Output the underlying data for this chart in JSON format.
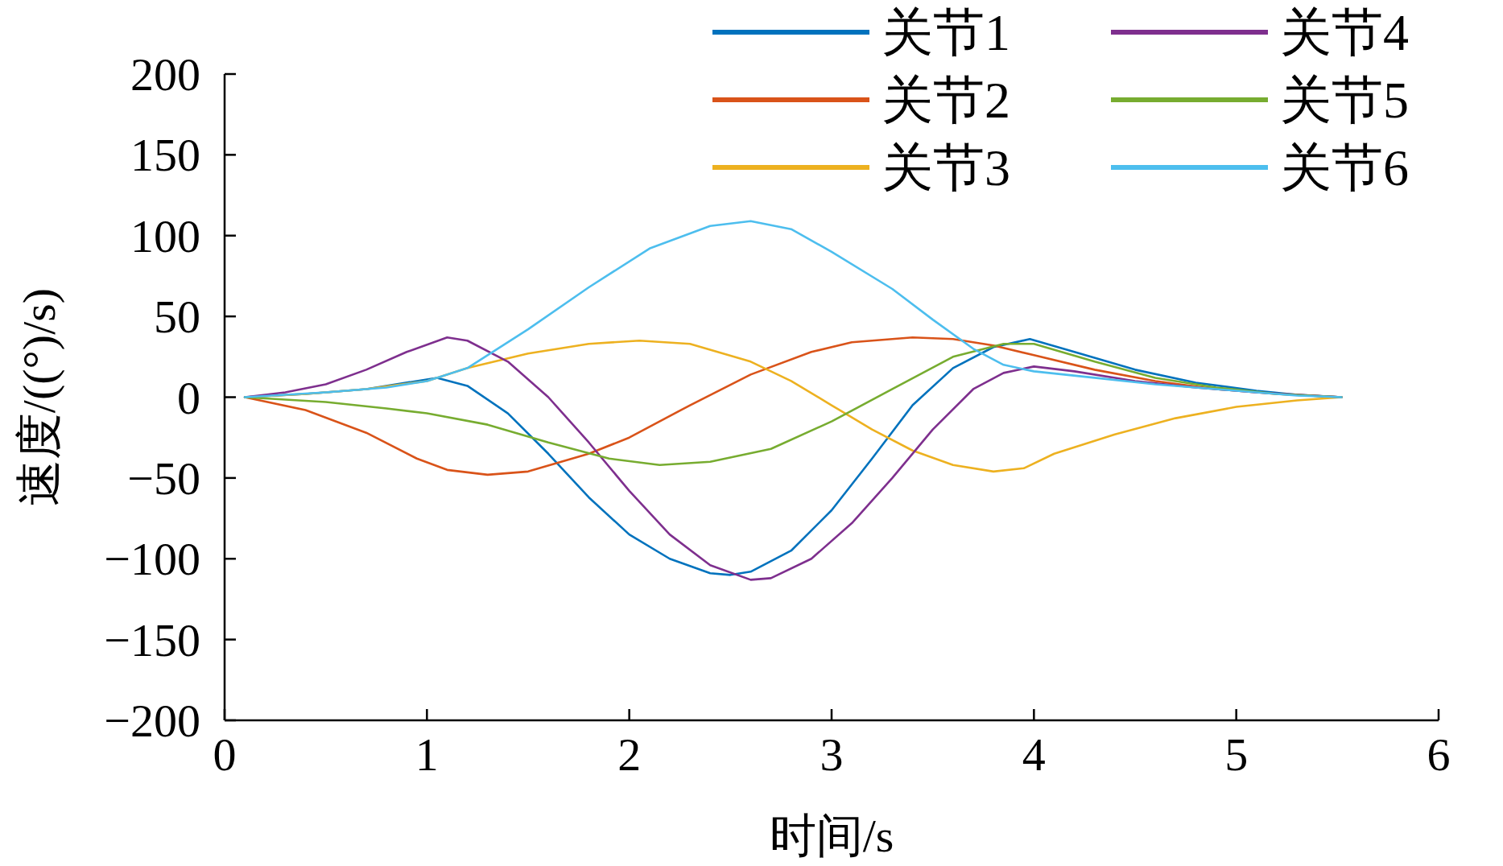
{
  "chart_data": {
    "type": "line",
    "xlabel": "时间/s",
    "ylabel": "速度/((°)/s)",
    "xlim": [
      0,
      6
    ],
    "ylim": [
      -200,
      200
    ],
    "xticks": [
      0,
      1,
      2,
      3,
      4,
      5,
      6
    ],
    "yticks": [
      -200,
      -150,
      -100,
      -50,
      0,
      50,
      100,
      150,
      200
    ],
    "grid": false,
    "legend": "top right",
    "line_style": "solid",
    "marker": "none",
    "series": [
      {
        "name": "关节1",
        "color": "#0072bd",
        "x": [
          0.1,
          0.4,
          0.7,
          0.95,
          1.05,
          1.2,
          1.4,
          1.6,
          1.8,
          2.0,
          2.2,
          2.4,
          2.5,
          2.6,
          2.8,
          3.0,
          3.2,
          3.4,
          3.6,
          3.8,
          3.98,
          4.2,
          4.5,
          4.8,
          5.1,
          5.3,
          5.52
        ],
        "values": [
          0,
          2,
          5,
          10,
          12,
          7,
          -10,
          -35,
          -62,
          -85,
          -100,
          -109,
          -110,
          -108,
          -95,
          -70,
          -38,
          -5,
          18,
          31,
          36,
          28,
          17,
          9,
          4,
          1.5,
          0
        ]
      },
      {
        "name": "关节2",
        "color": "#d95319",
        "x": [
          0.1,
          0.4,
          0.7,
          0.95,
          1.1,
          1.3,
          1.5,
          1.8,
          2.0,
          2.3,
          2.6,
          2.9,
          3.1,
          3.4,
          3.6,
          3.8,
          4.0,
          4.3,
          4.6,
          4.9,
          5.2,
          5.52
        ],
        "values": [
          0,
          -8,
          -22,
          -38,
          -45,
          -48,
          -46,
          -35,
          -25,
          -5,
          14,
          28,
          34,
          37,
          36,
          32,
          26,
          17,
          10,
          5,
          2,
          0
        ]
      },
      {
        "name": "关节3",
        "color": "#edb120",
        "x": [
          0.1,
          0.4,
          0.7,
          1.0,
          1.2,
          1.5,
          1.8,
          2.05,
          2.3,
          2.6,
          2.8,
          3.0,
          3.2,
          3.4,
          3.6,
          3.8,
          3.95,
          4.1,
          4.4,
          4.7,
          5.0,
          5.3,
          5.52
        ],
        "values": [
          0,
          2,
          5,
          10,
          18,
          27,
          33,
          35,
          33,
          22,
          10,
          -5,
          -20,
          -33,
          -42,
          -46,
          -44,
          -35,
          -23,
          -13,
          -6,
          -2,
          0
        ]
      },
      {
        "name": "关节4",
        "color": "#7e2f8e",
        "x": [
          0.1,
          0.3,
          0.5,
          0.7,
          0.9,
          1.1,
          1.2,
          1.4,
          1.6,
          1.8,
          2.0,
          2.2,
          2.4,
          2.6,
          2.7,
          2.9,
          3.1,
          3.3,
          3.5,
          3.7,
          3.85,
          4.0,
          4.2,
          4.5,
          4.8,
          5.1,
          5.52
        ],
        "values": [
          0,
          3,
          8,
          17,
          28,
          37,
          35,
          22,
          0,
          -28,
          -58,
          -85,
          -104,
          -113,
          -112,
          -100,
          -78,
          -50,
          -20,
          5,
          15,
          19,
          16,
          10,
          6,
          3,
          0
        ]
      },
      {
        "name": "关节5",
        "color": "#77ac30",
        "x": [
          0.1,
          0.5,
          0.8,
          1.0,
          1.3,
          1.6,
          1.9,
          2.15,
          2.4,
          2.7,
          3.0,
          3.3,
          3.6,
          3.85,
          4.0,
          4.3,
          4.6,
          4.9,
          5.2,
          5.52
        ],
        "values": [
          0,
          -3,
          -7,
          -10,
          -17,
          -28,
          -38,
          -42,
          -40,
          -32,
          -15,
          5,
          25,
          33,
          33,
          22,
          12,
          6,
          2,
          0
        ]
      },
      {
        "name": "关节6",
        "color": "#4dbeee",
        "x": [
          0.1,
          0.5,
          0.8,
          1.0,
          1.2,
          1.5,
          1.8,
          2.1,
          2.4,
          2.6,
          2.8,
          3.0,
          3.3,
          3.5,
          3.7,
          3.85,
          4.0,
          4.3,
          4.6,
          5.0,
          5.3,
          5.52
        ],
        "values": [
          0,
          3,
          6,
          10,
          18,
          42,
          68,
          92,
          106,
          109,
          104,
          90,
          67,
          48,
          30,
          20,
          16,
          12,
          8,
          4,
          1,
          0
        ]
      }
    ]
  }
}
